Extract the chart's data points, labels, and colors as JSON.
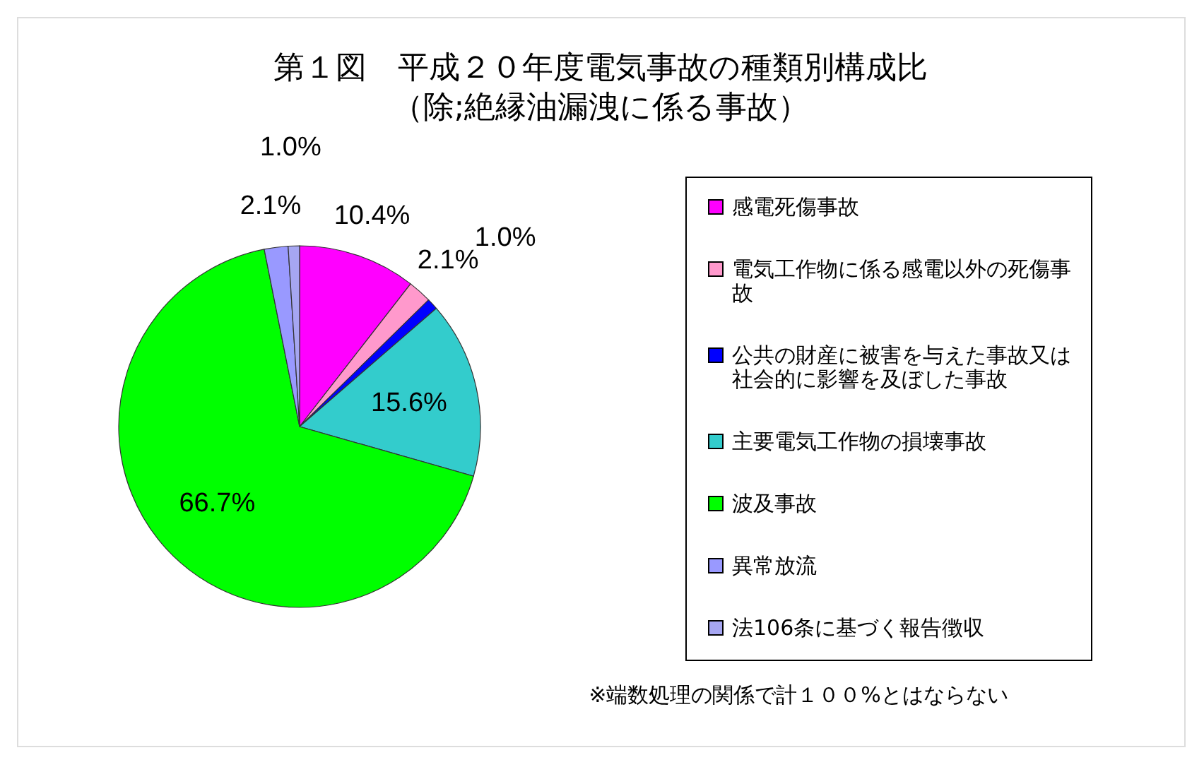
{
  "chart_data": {
    "type": "pie",
    "title": "第１図　平成２０年度電気事故の種類別構成比",
    "subtitle": "（除;絶縁油漏洩に係る事故）",
    "categories": [
      "感電死傷事故",
      "電気工作物に係る感電以外の死傷事故",
      "公共の財産に被害を与えた事故又は社会的に影響を及ぼした事故",
      "主要電気工作物の損壊事故",
      "波及事故",
      "異常放流",
      "法106条に基づく報告徴収"
    ],
    "values": [
      10.4,
      2.1,
      1.0,
      15.6,
      66.7,
      2.1,
      1.0
    ],
    "colors": [
      "#ff00ff",
      "#ff99cc",
      "#0000ff",
      "#33cccc",
      "#00ff00",
      "#9999ff",
      "#a6a6f2"
    ],
    "value_labels": [
      "10.4%",
      "2.1%",
      "1.0%",
      "15.6%",
      "66.7%",
      "2.1%",
      "1.0%"
    ],
    "legend": "right",
    "annotations": [
      "※端数処理の関係で計１００%とはならない"
    ]
  }
}
